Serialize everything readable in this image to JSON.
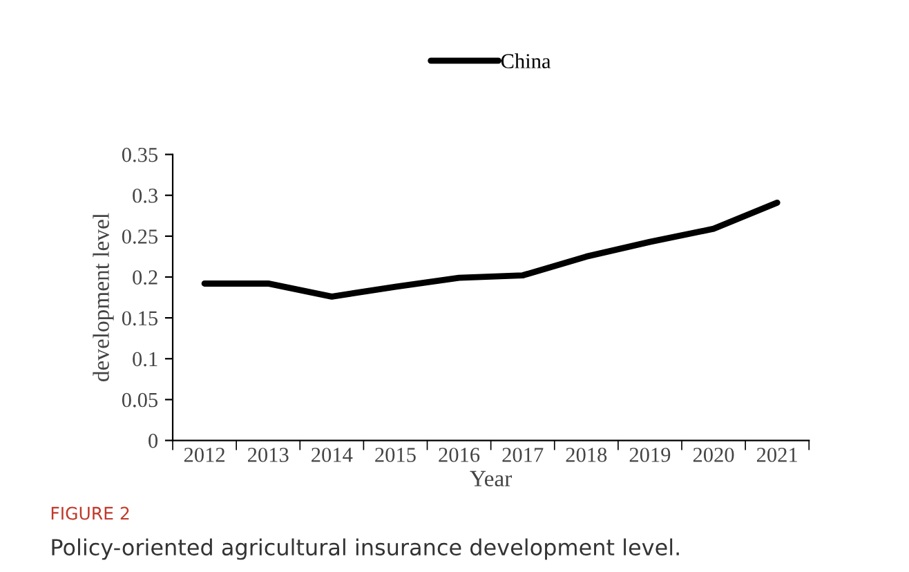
{
  "chart_data": {
    "type": "line",
    "categories": [
      "2012",
      "2013",
      "2014",
      "2015",
      "2016",
      "2017",
      "2018",
      "2019",
      "2020",
      "2021"
    ],
    "series": [
      {
        "name": "China",
        "color": "#000000",
        "values": [
          0.192,
          0.192,
          0.176,
          0.188,
          0.199,
          0.202,
          0.225,
          0.243,
          0.259,
          0.291
        ]
      }
    ],
    "xlabel": "Year",
    "ylabel": "development level",
    "ylim": [
      0,
      0.35
    ],
    "yticks": [
      0,
      0.05,
      0.1,
      0.15,
      0.2,
      0.25,
      0.3,
      0.35
    ],
    "grid": false,
    "legend": "top",
    "marker": "none",
    "line_style": "solid",
    "annotations": [
      "FIGURE 2",
      "Policy-oriented agricultural insurance development level."
    ]
  }
}
